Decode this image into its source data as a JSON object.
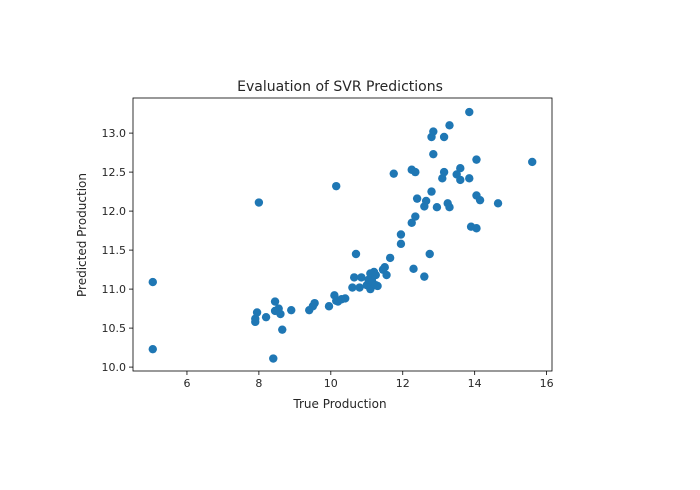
{
  "chart_data": {
    "type": "scatter",
    "title": "Evaluation of SVR Predictions",
    "xlabel": "True Production",
    "ylabel": "Predicted Production",
    "xlim": [
      4.5,
      16.15
    ],
    "ylim": [
      9.95,
      13.45
    ],
    "xticks": [
      6,
      8,
      10,
      12,
      14,
      16
    ],
    "yticks": [
      10.0,
      10.5,
      11.0,
      11.5,
      12.0,
      12.5,
      13.0
    ],
    "grid": false,
    "legend": "none",
    "series": [
      {
        "color": "#1f77b4",
        "points": [
          [
            5.05,
            11.09
          ],
          [
            5.05,
            10.23
          ],
          [
            7.9,
            10.62
          ],
          [
            7.9,
            10.58
          ],
          [
            7.95,
            10.7
          ],
          [
            8.0,
            12.11
          ],
          [
            8.2,
            10.64
          ],
          [
            8.45,
            10.84
          ],
          [
            8.45,
            10.72
          ],
          [
            8.4,
            10.11
          ],
          [
            8.55,
            10.75
          ],
          [
            8.6,
            10.68
          ],
          [
            8.65,
            10.48
          ],
          [
            8.9,
            10.73
          ],
          [
            9.4,
            10.73
          ],
          [
            9.5,
            10.78
          ],
          [
            9.55,
            10.82
          ],
          [
            9.95,
            10.78
          ],
          [
            10.1,
            10.92
          ],
          [
            10.15,
            10.85
          ],
          [
            10.15,
            12.32
          ],
          [
            10.2,
            10.84
          ],
          [
            10.3,
            10.87
          ],
          [
            10.4,
            10.88
          ],
          [
            10.6,
            11.02
          ],
          [
            10.65,
            11.15
          ],
          [
            10.7,
            11.45
          ],
          [
            10.8,
            11.02
          ],
          [
            10.85,
            11.15
          ],
          [
            11.0,
            11.05
          ],
          [
            11.05,
            11.12
          ],
          [
            11.1,
            11.2
          ],
          [
            11.1,
            11.0
          ],
          [
            11.15,
            11.15
          ],
          [
            11.15,
            11.1
          ],
          [
            11.2,
            11.22
          ],
          [
            11.25,
            11.05
          ],
          [
            11.25,
            11.18
          ],
          [
            11.3,
            11.04
          ],
          [
            11.45,
            11.25
          ],
          [
            11.5,
            11.28
          ],
          [
            11.55,
            11.18
          ],
          [
            11.65,
            11.4
          ],
          [
            11.75,
            12.48
          ],
          [
            11.95,
            11.7
          ],
          [
            11.95,
            11.58
          ],
          [
            12.25,
            11.85
          ],
          [
            12.25,
            12.53
          ],
          [
            12.3,
            11.26
          ],
          [
            12.35,
            12.5
          ],
          [
            12.35,
            11.93
          ],
          [
            12.4,
            12.16
          ],
          [
            12.6,
            12.06
          ],
          [
            12.6,
            11.16
          ],
          [
            12.65,
            12.13
          ],
          [
            12.75,
            11.45
          ],
          [
            12.8,
            12.25
          ],
          [
            12.8,
            12.95
          ],
          [
            12.85,
            13.02
          ],
          [
            12.85,
            12.73
          ],
          [
            12.95,
            12.05
          ],
          [
            13.1,
            12.42
          ],
          [
            13.15,
            12.5
          ],
          [
            13.15,
            12.95
          ],
          [
            13.25,
            12.1
          ],
          [
            13.3,
            12.05
          ],
          [
            13.3,
            13.1
          ],
          [
            13.5,
            12.47
          ],
          [
            13.6,
            12.4
          ],
          [
            13.6,
            12.55
          ],
          [
            13.85,
            13.27
          ],
          [
            13.85,
            12.42
          ],
          [
            13.9,
            11.8
          ],
          [
            14.05,
            11.78
          ],
          [
            14.05,
            12.66
          ],
          [
            14.05,
            12.2
          ],
          [
            14.15,
            12.14
          ],
          [
            14.65,
            12.1
          ],
          [
            15.6,
            12.63
          ]
        ]
      }
    ]
  }
}
